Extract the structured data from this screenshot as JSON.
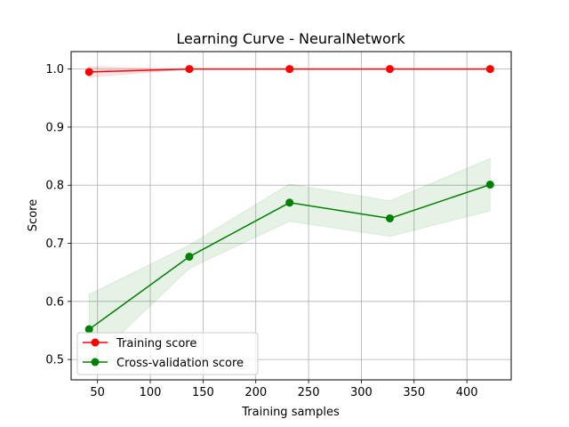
{
  "chart_data": {
    "type": "line",
    "title": "Learning Curve - NeuralNetwork",
    "xlabel": "Training samples",
    "ylabel": "Score",
    "xlim": [
      25,
      442
    ],
    "ylim": [
      0.465,
      1.03
    ],
    "xticks": [
      50,
      100,
      150,
      200,
      250,
      300,
      350,
      400
    ],
    "yticks": [
      0.5,
      0.6,
      0.7,
      0.8,
      0.9,
      1.0
    ],
    "ytick_labels": [
      "0.5",
      "0.6",
      "0.7",
      "0.8",
      "0.9",
      "1.0"
    ],
    "grid": true,
    "legend_position": "lower-left",
    "x": [
      42,
      137,
      232,
      327,
      422
    ],
    "series": [
      {
        "name": "Training score",
        "color": "#ff0000",
        "band_color": "#ff0000",
        "values": [
          0.995,
          1.0,
          1.0,
          1.0,
          1.0
        ],
        "band_lower": [
          0.986,
          1.0,
          1.0,
          1.0,
          1.0
        ],
        "band_upper": [
          1.004,
          1.0,
          1.0,
          1.0,
          1.0
        ]
      },
      {
        "name": "Cross-validation score",
        "color": "#008000",
        "band_color": "#008000",
        "values": [
          0.552,
          0.677,
          0.77,
          0.743,
          0.801
        ],
        "band_lower": [
          0.492,
          0.657,
          0.738,
          0.712,
          0.756
        ],
        "band_upper": [
          0.612,
          0.697,
          0.802,
          0.773,
          0.846
        ]
      }
    ]
  }
}
